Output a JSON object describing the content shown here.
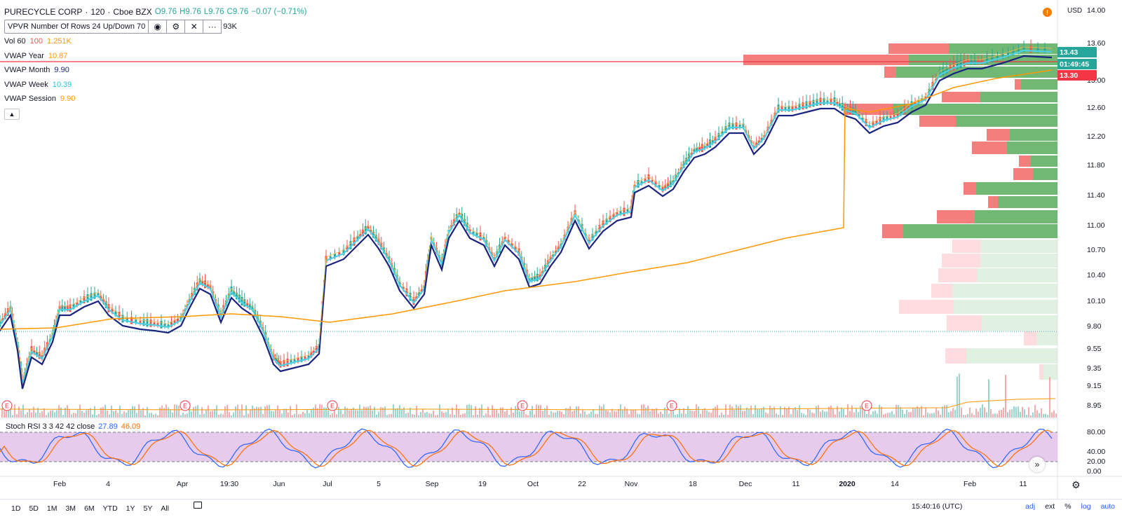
{
  "header": {
    "symbol": "PURECYCLE CORP",
    "interval": "120",
    "exchange": "Cboe BZX",
    "open": "O9.76",
    "high": "H9.76",
    "low": "L9.76",
    "close": "C9.76",
    "change": "−0.07 (−0.71%)"
  },
  "vpvr": {
    "label": "VPVR Number Of Rows 24 Up/Down 70",
    "extra": "93K"
  },
  "indicators": [
    {
      "name": "Vol 60",
      "v1": "100",
      "v2": "1.251K",
      "c1": "#ef5350",
      "c2": "#ff9800"
    },
    {
      "name": "VWAP Year",
      "v1": "10.87",
      "c1": "#ff9800"
    },
    {
      "name": "VWAP Month",
      "v1": "9.90",
      "c1": "#1a237e"
    },
    {
      "name": "VWAP Week",
      "v1": "10.39",
      "c1": "#26c6da"
    },
    {
      "name": "VWAP Session",
      "v1": "9.90",
      "c1": "#ff9800"
    }
  ],
  "stoch": {
    "label": "Stoch RSI 3 3 42 42 close",
    "k": "27.89",
    "d": "46.09"
  },
  "price_axis": {
    "currency": "USD",
    "ticks": [
      "14.00",
      "13.60",
      "13.00",
      "12.60",
      "12.20",
      "11.80",
      "11.40",
      "11.00",
      "10.70",
      "10.40",
      "10.10",
      "9.80",
      "9.55",
      "9.35",
      "9.15",
      "8.95"
    ],
    "last_price": "13.43",
    "countdown": "01:49:45",
    "line_price": "13.30"
  },
  "stoch_axis": {
    "ticks": [
      "80.00",
      "40.00",
      "20.00",
      "0.00"
    ]
  },
  "time_axis": {
    "labels": [
      "Feb",
      "4",
      "Apr",
      "19:30",
      "Jun",
      "Jul",
      "5",
      "Sep",
      "19",
      "Oct",
      "22",
      "Nov",
      "18",
      "Dec",
      "11",
      "2020",
      "14",
      "Feb",
      "11"
    ]
  },
  "toolbar": {
    "ranges": [
      "1D",
      "5D",
      "1M",
      "3M",
      "6M",
      "YTD",
      "1Y",
      "5Y",
      "All"
    ],
    "time": "15:40:16 (UTC)",
    "adj": "adj",
    "ext": "ext",
    "percent": "%",
    "log": "log",
    "auto": "auto"
  },
  "colors": {
    "up": "#26a69a",
    "down": "#ef5350",
    "vwap_month": "#1a237e",
    "vwap_week": "#4dd0e1",
    "vwap_year": "#ff9800",
    "stoch_band": "#e1bee7"
  }
}
